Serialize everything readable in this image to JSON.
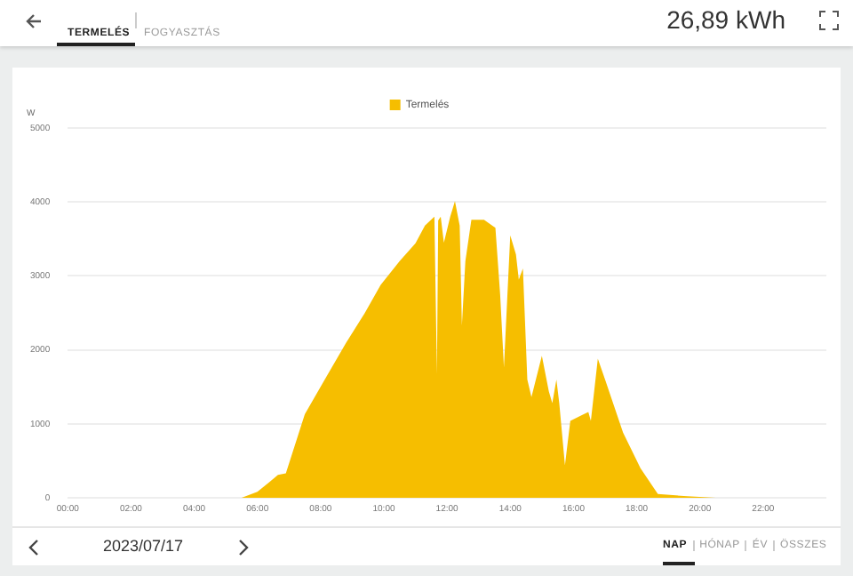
{
  "chart_data": {
    "type": "area",
    "ylabel": "W",
    "annotations": [
      "TERMELÉS",
      "FOGYASZTÁS",
      "26,89 kWh",
      "2023/07/17",
      "NAP",
      "HÓNAP",
      "ÉV",
      "ÖSSZES"
    ],
    "xlim": [
      0,
      24
    ],
    "xticks": [
      {
        "value": 0,
        "label": "00:00"
      },
      {
        "value": 2,
        "label": "02:00"
      },
      {
        "value": 4,
        "label": "04:00"
      },
      {
        "value": 6,
        "label": "06:00"
      },
      {
        "value": 8,
        "label": "08:00"
      },
      {
        "value": 10,
        "label": "10:00"
      },
      {
        "value": 12,
        "label": "12:00"
      },
      {
        "value": 14,
        "label": "14:00"
      },
      {
        "value": 16,
        "label": "16:00"
      },
      {
        "value": 18,
        "label": "18:00"
      },
      {
        "value": 20,
        "label": "20:00"
      },
      {
        "value": 22,
        "label": "22:00"
      }
    ],
    "ylim": [
      0,
      5000
    ],
    "yticks": [
      0,
      1000,
      2000,
      3000,
      4000,
      5000
    ],
    "grid": "y",
    "legend": "top",
    "marker": "none",
    "series": [
      {
        "name": "Termelés",
        "color": "#f6be00",
        "x": [
          5.5,
          6.0,
          6.4,
          6.65,
          6.9,
          7.5,
          8.2,
          8.8,
          9.4,
          9.9,
          10.5,
          11.0,
          11.3,
          11.6,
          11.68,
          11.72,
          11.8,
          11.9,
          12.1,
          12.25,
          12.4,
          12.47,
          12.58,
          12.77,
          13.17,
          13.53,
          13.68,
          13.8,
          14.0,
          14.18,
          14.27,
          14.4,
          14.54,
          14.67,
          15.0,
          15.22,
          15.33,
          15.46,
          15.55,
          15.73,
          15.9,
          16.28,
          16.47,
          16.55,
          16.77,
          17.0,
          17.57,
          18.12,
          18.67,
          19.6,
          20.5
        ],
        "values": [
          0,
          80,
          220,
          310,
          330,
          1130,
          1650,
          2090,
          2500,
          2880,
          3200,
          3440,
          3680,
          3800,
          1680,
          3750,
          3800,
          3450,
          3800,
          4010,
          3680,
          2330,
          3200,
          3760,
          3760,
          3650,
          2750,
          1760,
          3550,
          3290,
          2950,
          3100,
          1600,
          1360,
          1920,
          1440,
          1280,
          1600,
          1280,
          440,
          1040,
          1120,
          1160,
          1040,
          1880,
          1600,
          880,
          400,
          50,
          20,
          0
        ]
      }
    ]
  }
}
